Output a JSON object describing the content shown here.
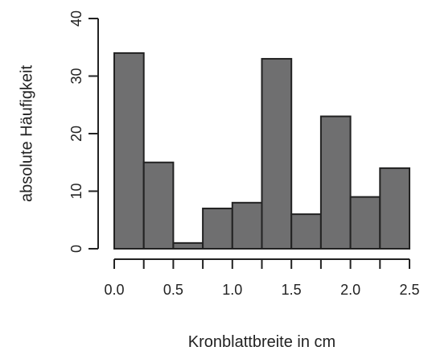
{
  "chart_data": {
    "type": "bar",
    "bins": [
      {
        "start": 0.0,
        "end": 0.25,
        "count": 34
      },
      {
        "start": 0.25,
        "end": 0.5,
        "count": 15
      },
      {
        "start": 0.5,
        "end": 0.75,
        "count": 1
      },
      {
        "start": 0.75,
        "end": 1.0,
        "count": 7
      },
      {
        "start": 1.0,
        "end": 1.25,
        "count": 8
      },
      {
        "start": 1.25,
        "end": 1.5,
        "count": 33
      },
      {
        "start": 1.5,
        "end": 1.75,
        "count": 6
      },
      {
        "start": 1.75,
        "end": 2.0,
        "count": 23
      },
      {
        "start": 2.0,
        "end": 2.25,
        "count": 9
      },
      {
        "start": 2.25,
        "end": 2.5,
        "count": 14
      }
    ],
    "xlabel": "Kronblattbreite in cm",
    "ylabel": "absolute Häufigkeit",
    "xlim": [
      0.0,
      2.5
    ],
    "ylim": [
      0,
      40
    ],
    "x_ticks": [
      0.0,
      0.5,
      1.0,
      1.5,
      2.0,
      2.5
    ],
    "x_tick_labels": [
      "0.0",
      "0.5",
      "1.0",
      "1.5",
      "2.0",
      "2.5"
    ],
    "x_minor_ticks": [
      0.25,
      0.75,
      1.25,
      1.75,
      2.25
    ],
    "y_ticks": [
      0,
      10,
      20,
      30,
      40
    ],
    "y_tick_labels": [
      "0",
      "10",
      "20",
      "30",
      "40"
    ],
    "grid": false,
    "bar_color": "#6f6f70",
    "border_color": "#222222"
  }
}
